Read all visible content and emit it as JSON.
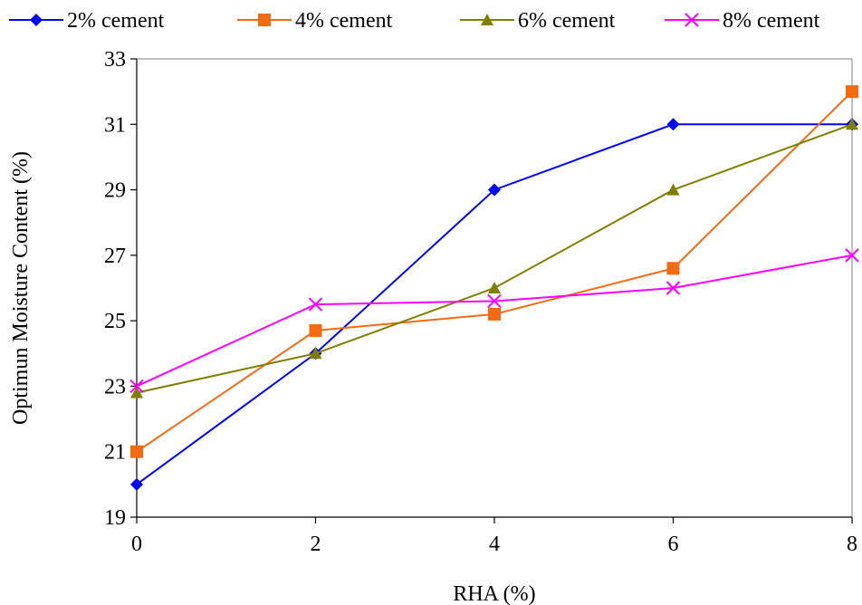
{
  "chart_data": {
    "type": "line",
    "title": "",
    "xlabel": "RHA (%)",
    "ylabel": "Optimun Moisture Content (%)",
    "x": [
      0,
      2,
      4,
      6,
      8
    ],
    "xlim": [
      0,
      8
    ],
    "ylim": [
      19,
      33
    ],
    "xticks": [
      0,
      2,
      4,
      6,
      8
    ],
    "yticks": [
      19,
      21,
      23,
      25,
      27,
      29,
      31,
      33
    ],
    "grid": false,
    "legend_position": "top",
    "series": [
      {
        "name": "2% cement",
        "values": [
          20,
          24,
          29,
          31,
          31
        ],
        "color": "#0000ff",
        "marker": "diamond"
      },
      {
        "name": "4% cement",
        "values": [
          21,
          24.7,
          25.2,
          26.6,
          32
        ],
        "color": "#f26b10",
        "marker": "square"
      },
      {
        "name": "6% cement",
        "values": [
          22.8,
          24,
          26,
          29,
          31
        ],
        "color": "#808000",
        "marker": "triangle"
      },
      {
        "name": "8% cement",
        "values": [
          23,
          25.5,
          25.6,
          26,
          27
        ],
        "color": "#ff00ff",
        "marker": "x"
      }
    ]
  }
}
